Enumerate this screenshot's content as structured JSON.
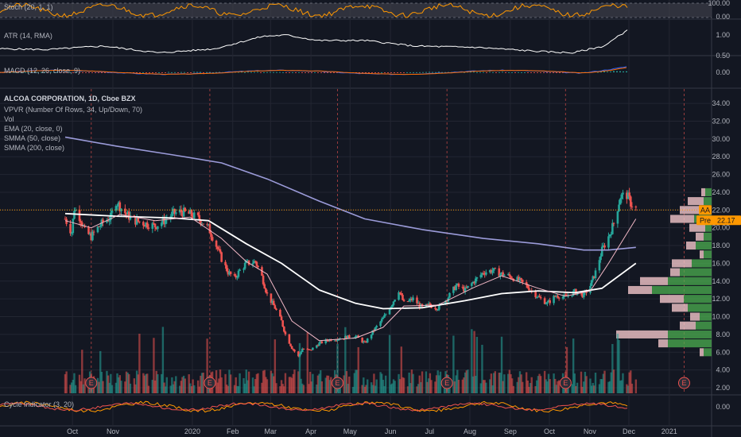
{
  "chart_data": {
    "type": "candlestick",
    "symbol_badge": "AA",
    "premarket_label": "Pre",
    "premarket_price": "22.17",
    "last_price": 22.0,
    "x_tick_labels": [
      "Oct",
      "Nov",
      "2020",
      "Feb",
      "Mar",
      "Apr",
      "May",
      "Jun",
      "Jul",
      "Aug",
      "Sep",
      "Oct",
      "Nov",
      "Dec",
      "2021"
    ],
    "earnings_marker_label": "E",
    "earnings_dates": [
      "2019-10-16",
      "2020-01-15",
      "2020-04-22",
      "2020-07-15",
      "2020-10-14",
      "2021-01-13"
    ],
    "panes": {
      "stoch": {
        "label": "Stoch (20, 1, 1)",
        "ticks": [
          "100.00",
          "0.00"
        ],
        "ylim": [
          0,
          100
        ],
        "color": "#ff9800"
      },
      "atr": {
        "label": "ATR (14, RMA)",
        "ticks": [
          "1.00",
          "0.50"
        ],
        "ylim": [
          0.5,
          1.6
        ],
        "color": "#ffffff"
      },
      "macd": {
        "label": "MACD (12, 26, close, 9)",
        "ticks": [
          "0.00"
        ],
        "ylim": [
          -1.5,
          1.5
        ],
        "colors": {
          "macd": "#2962ff",
          "signal": "#ff6d00",
          "hist_up": "#26a69a",
          "hist_down": "#ef5350"
        }
      },
      "main": {
        "label": "ALCOA CORPORATION, 1D, Cboe BZX",
        "overlay_labels": [
          "VPVR (Number Of Rows, 34, Up/Down, 70)",
          "Vol",
          "EMA (20, close, 0)",
          "SMMA (50, close)",
          "SMMA (200, close)"
        ],
        "ticks": [
          "34.00",
          "32.00",
          "30.00",
          "28.00",
          "26.00",
          "24.00",
          "22.00",
          "20.00",
          "18.00",
          "16.00",
          "14.00",
          "12.00",
          "10.00",
          "8.00",
          "6.00",
          "4.00",
          "2.00"
        ],
        "ylim": [
          1.2,
          34.9
        ],
        "up_color": "#26a69a",
        "down_color": "#ef5350"
      },
      "cycle": {
        "label": "Cycle Indicator (3, 20)",
        "ticks": [
          "0.00"
        ],
        "colors": [
          "#ff9800",
          "#ef5350"
        ]
      }
    },
    "price_path": [
      [
        "2019-09-26",
        21.0
      ],
      [
        "2019-10-01",
        19.5
      ],
      [
        "2019-10-03",
        22.2
      ],
      [
        "2019-10-08",
        21.0
      ],
      [
        "2019-10-11",
        19.6
      ],
      [
        "2019-10-16",
        19.0
      ],
      [
        "2019-10-21",
        20.0
      ],
      [
        "2019-10-25",
        20.6
      ],
      [
        "2019-10-31",
        21.2
      ],
      [
        "2019-11-04",
        23.0
      ],
      [
        "2019-11-07",
        22.4
      ],
      [
        "2019-11-12",
        21.5
      ],
      [
        "2019-11-19",
        20.8
      ],
      [
        "2019-11-26",
        20.5
      ],
      [
        "2019-12-04",
        20.2
      ],
      [
        "2019-12-11",
        20.8
      ],
      [
        "2019-12-18",
        21.6
      ],
      [
        "2019-12-24",
        21.8
      ],
      [
        "2019-12-31",
        21.5
      ],
      [
        "2020-01-07",
        21.0
      ],
      [
        "2020-01-14",
        20.0
      ],
      [
        "2020-01-20",
        18.0
      ],
      [
        "2020-01-24",
        16.5
      ],
      [
        "2020-01-29",
        15.0
      ],
      [
        "2020-02-03",
        14.3
      ],
      [
        "2020-02-07",
        15.2
      ],
      [
        "2020-02-12",
        16.0
      ],
      [
        "2020-02-19",
        16.2
      ],
      [
        "2020-02-24",
        14.5
      ],
      [
        "2020-02-28",
        12.5
      ],
      [
        "2020-03-05",
        11.0
      ],
      [
        "2020-03-10",
        9.5
      ],
      [
        "2020-03-13",
        8.0
      ],
      [
        "2020-03-18",
        6.5
      ],
      [
        "2020-03-23",
        5.5
      ],
      [
        "2020-03-26",
        6.4
      ],
      [
        "2020-04-01",
        6.2
      ],
      [
        "2020-04-08",
        7.0
      ],
      [
        "2020-04-15",
        7.4
      ],
      [
        "2020-04-22",
        7.5
      ],
      [
        "2020-04-29",
        7.7
      ],
      [
        "2020-05-06",
        7.8
      ],
      [
        "2020-05-13",
        7.0
      ],
      [
        "2020-05-20",
        8.5
      ],
      [
        "2020-05-27",
        9.8
      ],
      [
        "2020-06-03",
        11.5
      ],
      [
        "2020-06-08",
        13.0
      ],
      [
        "2020-06-12",
        11.5
      ],
      [
        "2020-06-19",
        12.0
      ],
      [
        "2020-06-26",
        11.0
      ],
      [
        "2020-07-01",
        11.3
      ],
      [
        "2020-07-08",
        11.0
      ],
      [
        "2020-07-15",
        12.0
      ],
      [
        "2020-07-22",
        13.5
      ],
      [
        "2020-07-29",
        13.0
      ],
      [
        "2020-08-05",
        14.0
      ],
      [
        "2020-08-12",
        15.0
      ],
      [
        "2020-08-19",
        15.2
      ],
      [
        "2020-08-26",
        14.8
      ],
      [
        "2020-09-02",
        14.5
      ],
      [
        "2020-09-09",
        14.0
      ],
      [
        "2020-09-16",
        13.2
      ],
      [
        "2020-09-23",
        12.2
      ],
      [
        "2020-09-30",
        11.5
      ],
      [
        "2020-10-07",
        12.4
      ],
      [
        "2020-10-14",
        12.2
      ],
      [
        "2020-10-21",
        12.8
      ],
      [
        "2020-10-28",
        12.4
      ],
      [
        "2020-11-02",
        13.5
      ],
      [
        "2020-11-06",
        15.0
      ],
      [
        "2020-11-11",
        17.5
      ],
      [
        "2020-11-16",
        19.0
      ],
      [
        "2020-11-20",
        20.5
      ],
      [
        "2020-11-25",
        23.5
      ],
      [
        "2020-11-30",
        23.7
      ],
      [
        "2020-12-03",
        22.8
      ],
      [
        "2020-12-07",
        22.2
      ]
    ],
    "ema_20": [
      [
        "2019-09-26",
        20.8
      ],
      [
        "2019-10-16",
        20.0
      ],
      [
        "2019-11-07",
        21.5
      ],
      [
        "2019-12-04",
        20.8
      ],
      [
        "2019-12-31",
        21.2
      ],
      [
        "2020-01-24",
        18.8
      ],
      [
        "2020-02-12",
        16.2
      ],
      [
        "2020-02-28",
        14.8
      ],
      [
        "2020-03-18",
        9.5
      ],
      [
        "2020-04-08",
        7.3
      ],
      [
        "2020-05-06",
        7.6
      ],
      [
        "2020-05-27",
        8.8
      ],
      [
        "2020-06-12",
        11.2
      ],
      [
        "2020-07-08",
        11.3
      ],
      [
        "2020-08-05",
        13.3
      ],
      [
        "2020-08-26",
        14.6
      ],
      [
        "2020-09-23",
        13.2
      ],
      [
        "2020-10-14",
        12.3
      ],
      [
        "2020-11-02",
        12.9
      ],
      [
        "2020-11-16",
        16.0
      ],
      [
        "2020-12-07",
        21.0
      ]
    ],
    "smma_50": [
      [
        "2019-09-26",
        21.6
      ],
      [
        "2019-11-04",
        21.3
      ],
      [
        "2019-12-18",
        21.1
      ],
      [
        "2020-01-14",
        20.8
      ],
      [
        "2020-02-12",
        18.2
      ],
      [
        "2020-03-10",
        16.0
      ],
      [
        "2020-04-08",
        13.0
      ],
      [
        "2020-05-06",
        11.5
      ],
      [
        "2020-05-27",
        10.9
      ],
      [
        "2020-06-26",
        11.0
      ],
      [
        "2020-07-29",
        11.8
      ],
      [
        "2020-08-26",
        12.6
      ],
      [
        "2020-09-23",
        12.9
      ],
      [
        "2020-10-21",
        12.7
      ],
      [
        "2020-11-11",
        13.2
      ],
      [
        "2020-12-07",
        16.0
      ]
    ],
    "smma_200": [
      [
        "2019-09-26",
        30.2
      ],
      [
        "2019-11-04",
        29.2
      ],
      [
        "2019-12-18",
        28.2
      ],
      [
        "2020-01-24",
        27.3
      ],
      [
        "2020-02-28",
        25.5
      ],
      [
        "2020-04-08",
        23.0
      ],
      [
        "2020-05-13",
        21.0
      ],
      [
        "2020-06-26",
        19.8
      ],
      [
        "2020-08-12",
        18.8
      ],
      [
        "2020-09-23",
        18.2
      ],
      [
        "2020-10-28",
        17.5
      ],
      [
        "2020-11-16",
        17.5
      ],
      [
        "2020-12-07",
        17.8
      ]
    ],
    "volume_profile": [
      {
        "price": 6.0,
        "up": 0.1,
        "down": 0.05
      },
      {
        "price": 7.0,
        "up": 0.55,
        "down": 0.12
      },
      {
        "price": 8.0,
        "up": 0.55,
        "down": 0.65
      },
      {
        "price": 9.0,
        "up": 0.2,
        "down": 0.2
      },
      {
        "price": 10.0,
        "up": 0.15,
        "down": 0.12
      },
      {
        "price": 11.0,
        "up": 0.3,
        "down": 0.2
      },
      {
        "price": 12.0,
        "up": 0.35,
        "down": 0.3
      },
      {
        "price": 13.0,
        "up": 0.75,
        "down": 0.3
      },
      {
        "price": 14.0,
        "up": 0.55,
        "down": 0.35
      },
      {
        "price": 15.0,
        "up": 0.4,
        "down": 0.12
      },
      {
        "price": 16.0,
        "up": 0.25,
        "down": 0.25
      },
      {
        "price": 17.0,
        "up": 0.1,
        "down": 0.05
      },
      {
        "price": 18.0,
        "up": 0.2,
        "down": 0.12
      },
      {
        "price": 19.0,
        "up": 0.1,
        "down": 0.1
      },
      {
        "price": 20.0,
        "up": 0.08,
        "down": 0.2
      },
      {
        "price": 21.0,
        "up": 0.22,
        "down": 0.3
      },
      {
        "price": 22.0,
        "up": 0.15,
        "down": 0.25
      },
      {
        "price": 23.0,
        "up": 0.1,
        "down": 0.2
      },
      {
        "price": 24.0,
        "up": 0.08,
        "down": 0.05
      }
    ]
  }
}
